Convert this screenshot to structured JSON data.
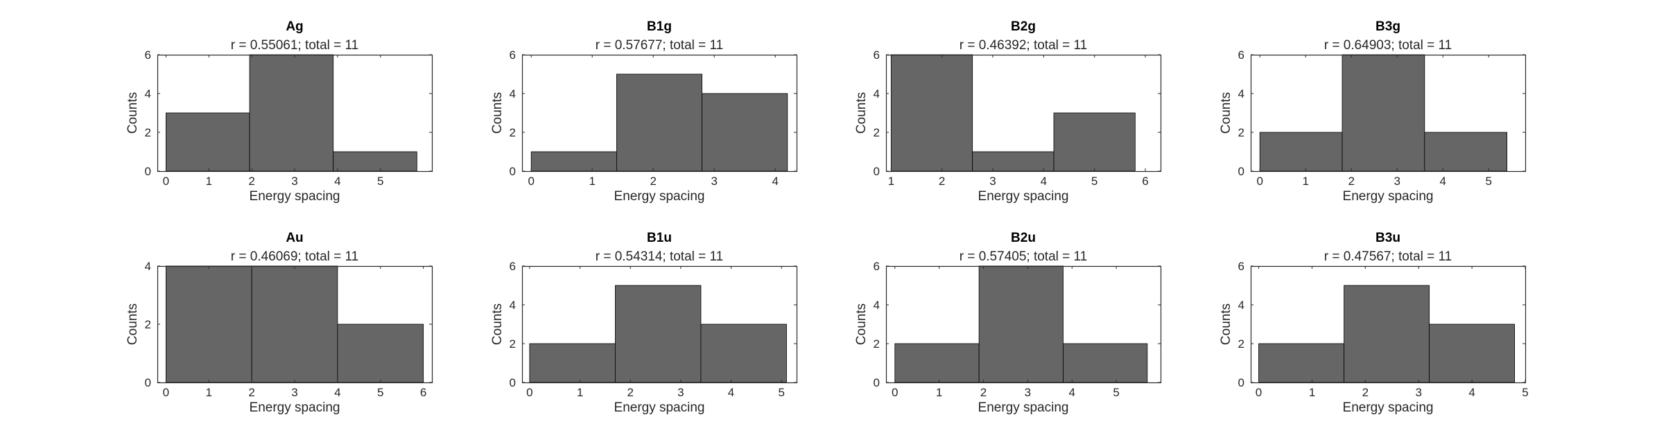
{
  "figure": {
    "background": "#ffffff",
    "bar_color": "#666666",
    "axes_color": "#262626"
  },
  "chart_data": [
    {
      "type": "bar",
      "title": "Ag",
      "subtitle": "r = 0.55061; total = 11",
      "xlabel": "Energy spacing",
      "ylabel": "Counts",
      "bin_edges": [
        0,
        1.95,
        3.9,
        5.85
      ],
      "values": [
        3,
        6,
        1
      ],
      "xlim": [
        -0.2,
        6.2
      ],
      "ylim": [
        0,
        6
      ],
      "xticks": [
        0,
        1,
        2,
        3,
        4,
        5
      ],
      "yticks": [
        0,
        2,
        4,
        6
      ]
    },
    {
      "type": "bar",
      "title": "B1g",
      "subtitle": "r = 0.57677; total = 11",
      "xlabel": "Energy spacing",
      "ylabel": "Counts",
      "bin_edges": [
        0,
        1.4,
        2.8,
        4.2
      ],
      "values": [
        1,
        5,
        4
      ],
      "xlim": [
        -0.15,
        4.35
      ],
      "ylim": [
        0,
        6
      ],
      "xticks": [
        0,
        1,
        2,
        3,
        4
      ],
      "yticks": [
        0,
        2,
        4,
        6
      ]
    },
    {
      "type": "bar",
      "title": "B2g",
      "subtitle": "r = 0.46392; total = 11",
      "xlabel": "Energy spacing",
      "ylabel": "Counts",
      "bin_edges": [
        1,
        2.6,
        4.2,
        5.8
      ],
      "values": [
        6,
        1,
        3
      ],
      "xlim": [
        0.9,
        6.3
      ],
      "ylim": [
        0,
        6
      ],
      "xticks": [
        1,
        2,
        3,
        4,
        5,
        6
      ],
      "yticks": [
        0,
        2,
        4,
        6
      ]
    },
    {
      "type": "bar",
      "title": "B3g",
      "subtitle": "r = 0.64903; total = 11",
      "xlabel": "Energy spacing",
      "ylabel": "Counts",
      "bin_edges": [
        0,
        1.8,
        3.6,
        5.4
      ],
      "values": [
        2,
        6,
        2
      ],
      "xlim": [
        -0.2,
        5.8
      ],
      "ylim": [
        0,
        6
      ],
      "xticks": [
        0,
        1,
        2,
        3,
        4,
        5
      ],
      "yticks": [
        0,
        2,
        4,
        6
      ]
    },
    {
      "type": "bar",
      "title": "Au",
      "subtitle": "r = 0.46069; total = 11",
      "xlabel": "Energy spacing",
      "ylabel": "Counts",
      "bin_edges": [
        0,
        2,
        4,
        6
      ],
      "values": [
        4,
        4,
        2
      ],
      "xlim": [
        -0.2,
        6.2
      ],
      "ylim": [
        0,
        4
      ],
      "xticks": [
        0,
        1,
        2,
        3,
        4,
        5,
        6
      ],
      "yticks": [
        0,
        2,
        4
      ]
    },
    {
      "type": "bar",
      "title": "B1u",
      "subtitle": "r = 0.54314; total = 11",
      "xlabel": "Energy spacing",
      "ylabel": "Counts",
      "bin_edges": [
        0,
        1.7,
        3.4,
        5.1
      ],
      "values": [
        2,
        5,
        3
      ],
      "xlim": [
        -0.15,
        5.3
      ],
      "ylim": [
        0,
        6
      ],
      "xticks": [
        0,
        1,
        2,
        3,
        4,
        5
      ],
      "yticks": [
        0,
        2,
        4,
        6
      ]
    },
    {
      "type": "bar",
      "title": "B2u",
      "subtitle": "r = 0.57405; total = 11",
      "xlabel": "Energy spacing",
      "ylabel": "Counts",
      "bin_edges": [
        0,
        1.9,
        3.8,
        5.7
      ],
      "values": [
        2,
        6,
        2
      ],
      "xlim": [
        -0.2,
        6.0
      ],
      "ylim": [
        0,
        6
      ],
      "xticks": [
        0,
        1,
        2,
        3,
        4,
        5
      ],
      "yticks": [
        0,
        2,
        4,
        6
      ]
    },
    {
      "type": "bar",
      "title": "B3u",
      "subtitle": "r = 0.47567; total = 11",
      "xlabel": "Energy spacing",
      "ylabel": "Counts",
      "bin_edges": [
        0,
        1.6,
        3.2,
        4.8
      ],
      "values": [
        2,
        5,
        3
      ],
      "xlim": [
        -0.15,
        5.0
      ],
      "ylim": [
        0,
        6
      ],
      "xticks": [
        0,
        1,
        2,
        3,
        4,
        5
      ],
      "yticks": [
        0,
        2,
        4,
        6
      ]
    }
  ]
}
